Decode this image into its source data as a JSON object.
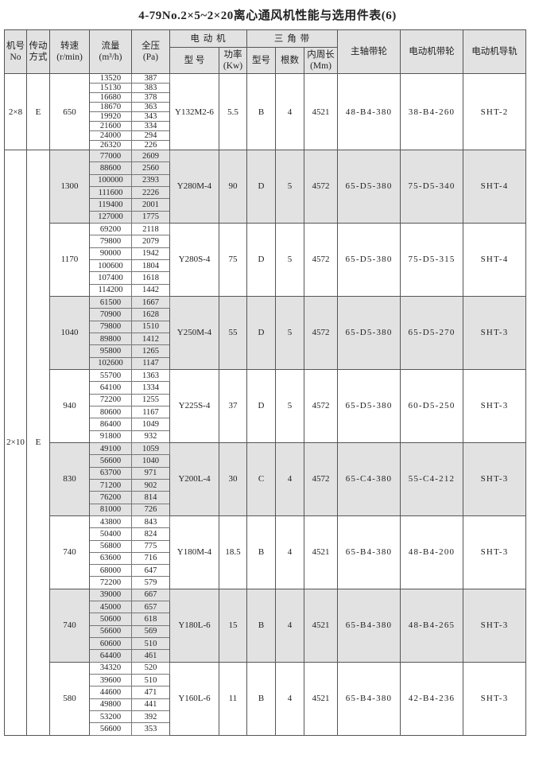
{
  "title": "4-79No.2×5~2×20离心通风机性能与选用件表(6)",
  "headers": {
    "no": "机号",
    "no_sub": "No",
    "drive": "传动",
    "drive_sub": "方式",
    "speed": "转速",
    "speed_unit": "(r/min)",
    "flow": "流量",
    "flow_unit": "(m³/h)",
    "pressure": "全压",
    "pressure_unit": "(Pa)",
    "motor": "电 动 机",
    "motor_model": "型 号",
    "power": "功率",
    "power_unit": "(Kw)",
    "belt": "三 角 带",
    "belt_type": "型号",
    "belt_count": "根数",
    "belt_len": "内周长",
    "belt_len_unit": "(Mm)",
    "spindle_pulley": "主轴带轮",
    "motor_pulley": "电动机带轮",
    "motor_rail": "电动机导轨"
  },
  "machines": [
    {
      "no": "2×8",
      "drive": "E",
      "groups": [
        {
          "speed": "650",
          "shaded": false,
          "flow": [
            "13520",
            "15130",
            "16680",
            "18670",
            "19920",
            "21600",
            "24000",
            "26320"
          ],
          "pressure": [
            "387",
            "383",
            "378",
            "363",
            "343",
            "334",
            "294",
            "226"
          ],
          "motor": "Y132M2-6",
          "power": "5.5",
          "belt_type": "B",
          "belt_count": "4",
          "belt_len": "4521",
          "spindle_pulley": "48-B4-380",
          "motor_pulley": "38-B4-260",
          "rail": "SHT-2"
        }
      ]
    },
    {
      "no": "2×10",
      "drive": "E",
      "groups": [
        {
          "speed": "1300",
          "shaded": true,
          "flow": [
            "77000",
            "88600",
            "100000",
            "111600",
            "119400",
            "127000"
          ],
          "pressure": [
            "2609",
            "2560",
            "2393",
            "2226",
            "2001",
            "1775"
          ],
          "motor": "Y280M-4",
          "power": "90",
          "belt_type": "D",
          "belt_count": "5",
          "belt_len": "4572",
          "spindle_pulley": "65-D5-380",
          "motor_pulley": "75-D5-340",
          "rail": "SHT-4"
        },
        {
          "speed": "1170",
          "shaded": false,
          "flow": [
            "69200",
            "79800",
            "90000",
            "100600",
            "107400",
            "114200"
          ],
          "pressure": [
            "2118",
            "2079",
            "1942",
            "1804",
            "1618",
            "1442"
          ],
          "motor": "Y280S-4",
          "power": "75",
          "belt_type": "D",
          "belt_count": "5",
          "belt_len": "4572",
          "spindle_pulley": "65-D5-380",
          "motor_pulley": "75-D5-315",
          "rail": "SHT-4"
        },
        {
          "speed": "1040",
          "shaded": true,
          "flow": [
            "61500",
            "70900",
            "79800",
            "89800",
            "95800",
            "102600"
          ],
          "pressure": [
            "1667",
            "1628",
            "1510",
            "1412",
            "1265",
            "1147"
          ],
          "motor": "Y250M-4",
          "power": "55",
          "belt_type": "D",
          "belt_count": "5",
          "belt_len": "4572",
          "spindle_pulley": "65-D5-380",
          "motor_pulley": "65-D5-270",
          "rail": "SHT-3"
        },
        {
          "speed": "940",
          "shaded": false,
          "flow": [
            "55700",
            "64100",
            "72200",
            "80600",
            "86400",
            "91800"
          ],
          "pressure": [
            "1363",
            "1334",
            "1255",
            "1167",
            "1049",
            "932"
          ],
          "motor": "Y225S-4",
          "power": "37",
          "belt_type": "D",
          "belt_count": "5",
          "belt_len": "4572",
          "spindle_pulley": "65-D5-380",
          "motor_pulley": "60-D5-250",
          "rail": "SHT-3"
        },
        {
          "speed": "830",
          "shaded": true,
          "flow": [
            "49100",
            "56600",
            "63700",
            "71200",
            "76200",
            "81000"
          ],
          "pressure": [
            "1059",
            "1040",
            "971",
            "902",
            "814",
            "726"
          ],
          "motor": "Y200L-4",
          "power": "30",
          "belt_type": "C",
          "belt_count": "4",
          "belt_len": "4572",
          "spindle_pulley": "65-C4-380",
          "motor_pulley": "55-C4-212",
          "rail": "SHT-3"
        },
        {
          "speed": "740",
          "shaded": false,
          "flow": [
            "43800",
            "50400",
            "56800",
            "63600",
            "68000",
            "72200"
          ],
          "pressure": [
            "843",
            "824",
            "775",
            "716",
            "647",
            "579"
          ],
          "motor": "Y180M-4",
          "power": "18.5",
          "belt_type": "B",
          "belt_count": "4",
          "belt_len": "4521",
          "spindle_pulley": "65-B4-380",
          "motor_pulley": "48-B4-200",
          "rail": "SHT-3"
        },
        {
          "speed": "740",
          "shaded": true,
          "flow": [
            "39000",
            "45000",
            "50600",
            "56600",
            "60600",
            "64400"
          ],
          "pressure": [
            "667",
            "657",
            "618",
            "569",
            "510",
            "461"
          ],
          "motor": "Y180L-6",
          "power": "15",
          "belt_type": "B",
          "belt_count": "4",
          "belt_len": "4521",
          "spindle_pulley": "65-B4-380",
          "motor_pulley": "48-B4-265",
          "rail": "SHT-3"
        },
        {
          "speed": "580",
          "shaded": false,
          "flow": [
            "34320",
            "39600",
            "44600",
            "49800",
            "53200",
            "56600"
          ],
          "pressure": [
            "520",
            "510",
            "471",
            "441",
            "392",
            "353"
          ],
          "motor": "Y160L-6",
          "power": "11",
          "belt_type": "B",
          "belt_count": "4",
          "belt_len": "4521",
          "spindle_pulley": "65-B4-380",
          "motor_pulley": "42-B4-236",
          "rail": "SHT-3"
        }
      ]
    }
  ]
}
